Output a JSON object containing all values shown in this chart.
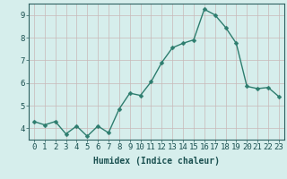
{
  "x": [
    0,
    1,
    2,
    3,
    4,
    5,
    6,
    7,
    8,
    9,
    10,
    11,
    12,
    13,
    14,
    15,
    16,
    17,
    18,
    19,
    20,
    21,
    22,
    23
  ],
  "y": [
    4.3,
    4.15,
    4.3,
    3.75,
    4.1,
    3.65,
    4.1,
    3.8,
    4.85,
    5.55,
    5.45,
    6.05,
    6.9,
    7.55,
    7.75,
    7.9,
    9.25,
    9.0,
    8.45,
    7.75,
    5.85,
    5.75,
    5.8,
    5.4
  ],
  "line_color": "#2d7d6e",
  "marker": "D",
  "marker_size": 2.5,
  "bg_color": "#d6eeec",
  "grid_color": "#c8b8b8",
  "axis_color": "#2d6060",
  "text_color": "#1a5050",
  "xlabel": "Humidex (Indice chaleur)",
  "xlim": [
    -0.5,
    23.5
  ],
  "ylim": [
    3.5,
    9.5
  ],
  "yticks": [
    4,
    5,
    6,
    7,
    8,
    9
  ],
  "xticks": [
    0,
    1,
    2,
    3,
    4,
    5,
    6,
    7,
    8,
    9,
    10,
    11,
    12,
    13,
    14,
    15,
    16,
    17,
    18,
    19,
    20,
    21,
    22,
    23
  ],
  "xlabel_fontsize": 7,
  "tick_fontsize": 6.5,
  "line_width": 1.0
}
